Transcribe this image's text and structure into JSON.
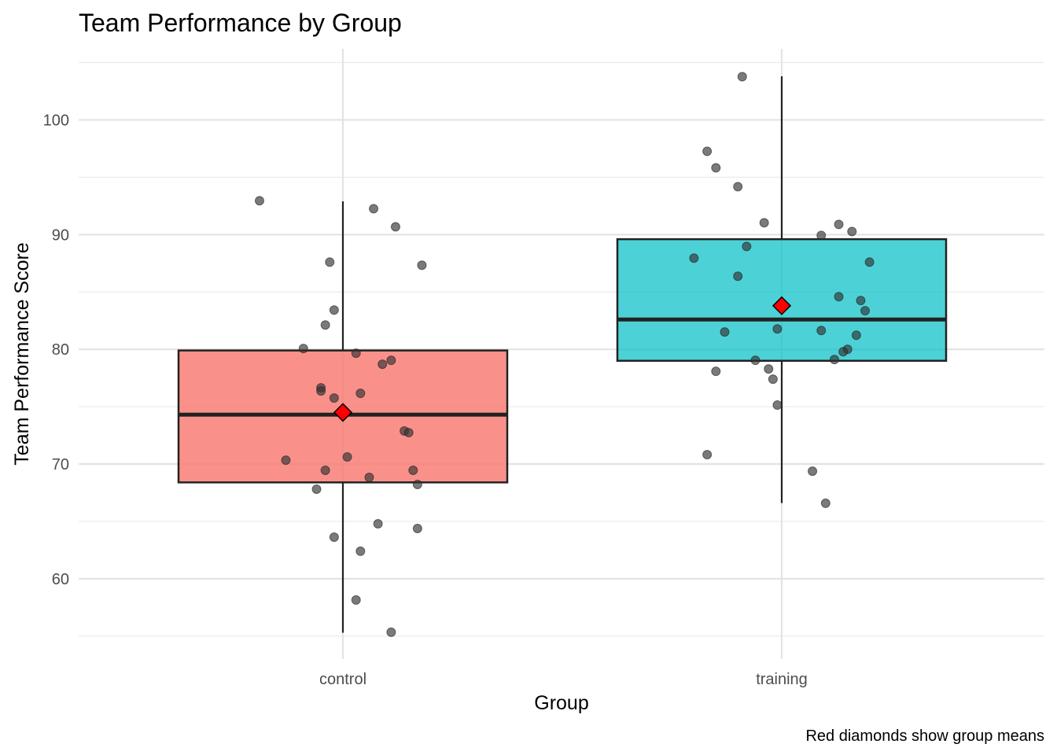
{
  "chart_data": {
    "type": "box",
    "title": "Team Performance by Group",
    "xlabel": "Group",
    "ylabel": "Team Performance Score",
    "caption": "Red diamonds show group means",
    "categories": [
      "control",
      "training"
    ],
    "ylim": [
      53.0,
      106.2
    ],
    "yticks": [
      60,
      70,
      80,
      90,
      100
    ],
    "yminor": [
      55,
      65,
      75,
      85,
      95,
      105
    ],
    "grid": true,
    "colors": {
      "control": "#F8766D",
      "training": "#00BFC4",
      "mean": "#FF0000",
      "point": "#333333"
    },
    "boxes": [
      {
        "group": "control",
        "q1": 68.4,
        "median": 74.3,
        "q3": 79.9,
        "whisker_low": 55.3,
        "whisker_high": 92.9,
        "mean": 74.5
      },
      {
        "group": "training",
        "q1": 79.0,
        "median": 82.6,
        "q3": 89.6,
        "whisker_low": 66.6,
        "whisker_high": 103.8,
        "mean": 83.8
      }
    ],
    "points": {
      "control": [
        [
          -0.19,
          92.95
        ],
        [
          0.07,
          92.26
        ],
        [
          0.12,
          90.68
        ],
        [
          0.18,
          87.33
        ],
        [
          -0.03,
          87.6
        ],
        [
          -0.02,
          83.42
        ],
        [
          -0.04,
          82.12
        ],
        [
          -0.09,
          80.07
        ],
        [
          0.03,
          79.66
        ],
        [
          0.11,
          79.04
        ],
        [
          0.09,
          78.7
        ],
        [
          -0.05,
          76.64
        ],
        [
          -0.05,
          76.37
        ],
        [
          -0.02,
          75.75
        ],
        [
          0.04,
          76.16
        ],
        [
          0.14,
          72.88
        ],
        [
          0.15,
          72.74
        ],
        [
          -0.13,
          70.34
        ],
        [
          0.01,
          70.62
        ],
        [
          -0.04,
          69.45
        ],
        [
          0.06,
          68.84
        ],
        [
          0.16,
          69.45
        ],
        [
          0.17,
          68.22
        ],
        [
          -0.06,
          67.81
        ],
        [
          0.08,
          64.79
        ],
        [
          0.17,
          64.38
        ],
        [
          -0.02,
          63.63
        ],
        [
          0.04,
          62.4
        ],
        [
          0.03,
          58.15
        ],
        [
          0.11,
          55.34
        ]
      ],
      "training": [
        [
          -0.09,
          103.77
        ],
        [
          -0.17,
          97.26
        ],
        [
          -0.15,
          95.82
        ],
        [
          -0.1,
          94.18
        ],
        [
          -0.04,
          91.03
        ],
        [
          0.13,
          90.89
        ],
        [
          0.16,
          90.27
        ],
        [
          0.09,
          89.93
        ],
        [
          -0.08,
          88.97
        ],
        [
          -0.2,
          87.95
        ],
        [
          0.2,
          87.6
        ],
        [
          -0.1,
          86.37
        ],
        [
          0.13,
          84.59
        ],
        [
          0.18,
          84.25
        ],
        [
          0.19,
          83.36
        ],
        [
          -0.13,
          81.51
        ],
        [
          -0.01,
          81.78
        ],
        [
          0.09,
          81.64
        ],
        [
          0.17,
          81.23
        ],
        [
          0.15,
          80.0
        ],
        [
          0.14,
          79.79
        ],
        [
          0.12,
          79.11
        ],
        [
          -0.06,
          79.04
        ],
        [
          -0.15,
          78.08
        ],
        [
          -0.03,
          78.29
        ],
        [
          -0.02,
          77.4
        ],
        [
          -0.01,
          75.14
        ],
        [
          -0.17,
          70.82
        ],
        [
          0.07,
          69.38
        ],
        [
          0.1,
          66.58
        ]
      ]
    }
  }
}
